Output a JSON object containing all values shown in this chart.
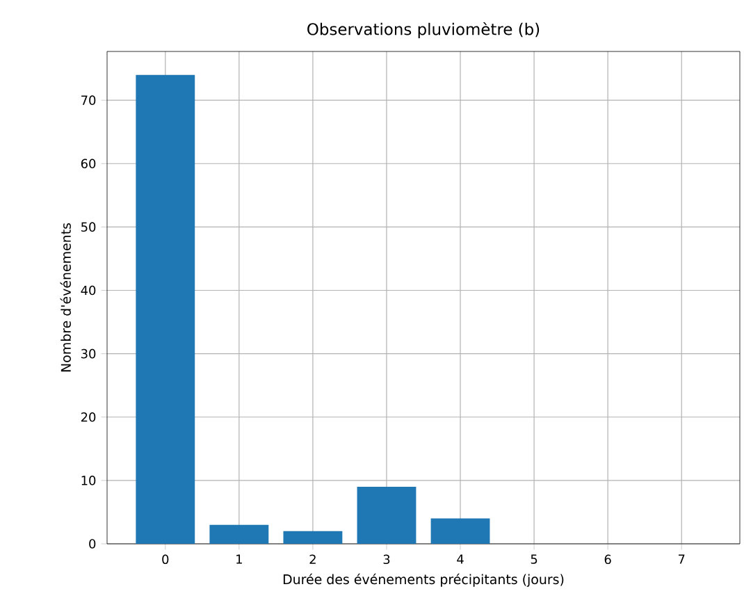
{
  "chart_data": {
    "type": "bar",
    "title": "Observations pluviomètre (b)",
    "xlabel": "Durée des événements précipitants (jours)",
    "ylabel": "Nombre d'événements",
    "x": [
      0,
      1,
      2,
      3,
      4,
      5,
      6,
      7
    ],
    "values": [
      74,
      3,
      2,
      9,
      4,
      0,
      0,
      0
    ],
    "color": "#1f77b4",
    "xlim": [
      -0.79,
      7.79
    ],
    "ylim": [
      0,
      77.7
    ],
    "xticks": [
      0,
      1,
      2,
      3,
      4,
      5,
      6,
      7
    ],
    "yticks": [
      0,
      10,
      20,
      30,
      40,
      50,
      60,
      70
    ],
    "grid": true
  }
}
